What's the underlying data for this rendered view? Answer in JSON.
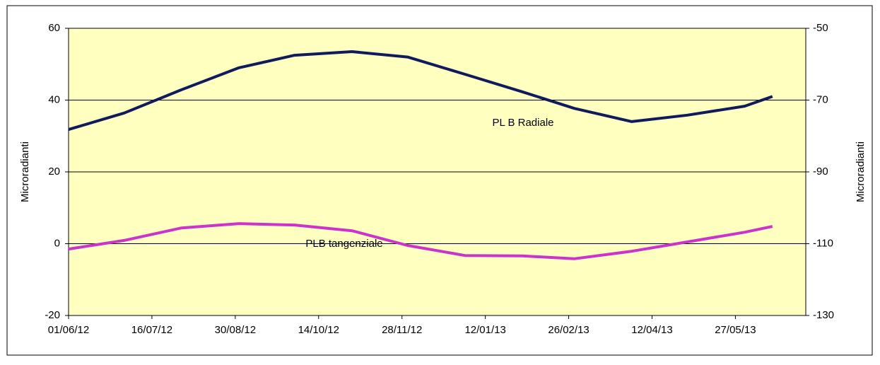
{
  "chart_data": {
    "type": "line",
    "x": [
      "01/06/12",
      "01/07/12",
      "01/08/12",
      "01/09/12",
      "01/10/12",
      "01/11/12",
      "01/12/12",
      "01/01/13",
      "01/02/13",
      "01/03/13",
      "01/04/13",
      "01/05/13",
      "01/06/13",
      "16/06/13"
    ],
    "series": [
      {
        "name": "PL B Radiale",
        "color": "#101a5c",
        "values": [
          31.8,
          36.4,
          42.9,
          49,
          52.5,
          53.5,
          52,
          47.2,
          42.3,
          37.7,
          34,
          35.8,
          38.3,
          41
        ]
      },
      {
        "name": "PLB tangenziale",
        "color": "#cc33cc",
        "values": [
          -1.5,
          0.9,
          4.4,
          5.6,
          5.2,
          3.6,
          -0.5,
          -3.3,
          -3.4,
          -4.2,
          -2.1,
          0.5,
          3.2,
          4.8
        ]
      }
    ],
    "xlim": [
      "01/06/12",
      "04/07/13"
    ],
    "xticks": [
      "01/06/12",
      "16/07/12",
      "30/08/12",
      "14/10/12",
      "28/11/12",
      "12/01/13",
      "26/02/13",
      "12/04/13",
      "27/05/13"
    ],
    "ylim": [
      -20,
      60
    ],
    "yticks": [
      -20,
      0,
      20,
      40,
      60
    ],
    "y2lim": [
      -130,
      -50
    ],
    "y2ticks": [
      -130,
      -110,
      -90,
      -70,
      -50
    ],
    "ylabel": "Microradianti",
    "y2label": "Microradianti",
    "grid": true,
    "background": "#ffffc0"
  }
}
